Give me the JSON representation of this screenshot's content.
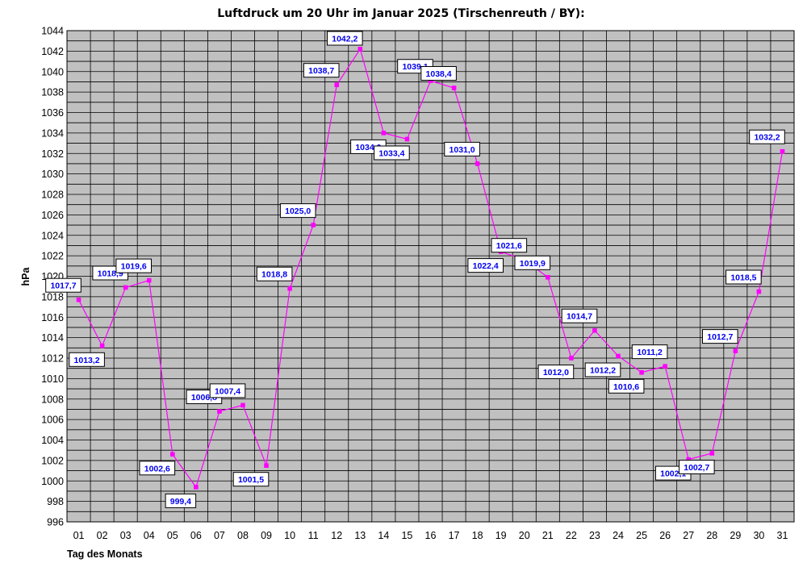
{
  "chart_data": {
    "type": "line",
    "title": "Luftdruck um 20 Uhr im Januar 2025 (Tirschenreuth / BY):",
    "xlabel": "Tag des Monats",
    "ylabel": "hPa",
    "categories": [
      "01",
      "02",
      "03",
      "04",
      "05",
      "06",
      "07",
      "08",
      "09",
      "10",
      "11",
      "12",
      "13",
      "14",
      "15",
      "16",
      "17",
      "18",
      "19",
      "20",
      "21",
      "22",
      "23",
      "24",
      "25",
      "26",
      "27",
      "28",
      "29",
      "30",
      "31"
    ],
    "series": [
      {
        "values": [
          1017.7,
          1013.2,
          1018.9,
          1019.6,
          1002.6,
          999.4,
          1006.8,
          1007.4,
          1001.5,
          1018.8,
          1025.0,
          1038.7,
          1042.2,
          1034.0,
          1033.4,
          1039.1,
          1038.4,
          1031.0,
          1022.4,
          1021.6,
          1019.9,
          1012.0,
          1014.7,
          1012.2,
          1010.6,
          1011.2,
          1002.1,
          1002.7,
          1012.7,
          1018.5,
          1032.2
        ],
        "labels": [
          "1017,7",
          "1013,2",
          "1018,9",
          "1019,6",
          "1002,6",
          "999,4",
          "1006,8",
          "1007,4",
          "1001,5",
          "1018,8",
          "1025,0",
          "1038,7",
          "1042,2",
          "1034,0",
          "1033,4",
          "1039,1",
          "1038,4",
          "1031,0",
          "1022,4",
          "1021,6",
          "1019,9",
          "1012,0",
          "1014,7",
          "1012,2",
          "1010,6",
          "1011,2",
          "1002,1",
          "1002,7",
          "1012,7",
          "1018,5",
          "1032,2"
        ],
        "label_position": [
          "above",
          "below",
          "above",
          "above",
          "below",
          "below",
          "above",
          "above",
          "below",
          "above",
          "above",
          "above",
          "above",
          "below",
          "below",
          "above",
          "above",
          "above",
          "below",
          "above",
          "above",
          "below",
          "above",
          "below",
          "below",
          "above",
          "below",
          "below",
          "above",
          "above",
          "above"
        ]
      }
    ],
    "ylim": [
      996,
      1044
    ],
    "ytick_step": 2,
    "grid": true,
    "colors": {
      "plot_background": "#c0c0c0",
      "grid": "#000000",
      "line": "#ff00ff",
      "marker": "#ff00ff",
      "label_text": "#0000ee",
      "label_box": "#ffffff"
    }
  }
}
